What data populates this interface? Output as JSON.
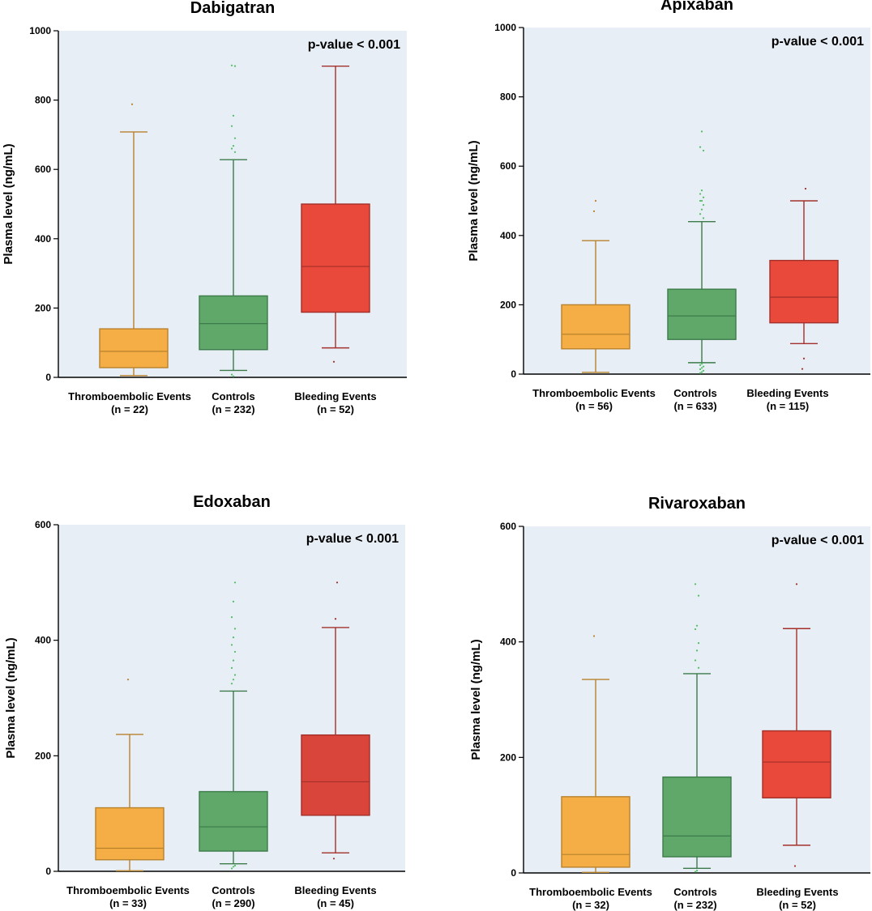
{
  "chart_data": [
    {
      "type": "box",
      "title": "Dabigatran",
      "annotation": "p-value < 0.001",
      "ylabel": "Plasma level (ng/mL)",
      "ylim": [
        0,
        1000
      ],
      "yticks": [
        0,
        200,
        400,
        600,
        800,
        1000
      ],
      "series": [
        {
          "category": "Thromboembolic Events",
          "n_label": "(n = 22)",
          "color": "#f5ae45",
          "line": "#b8822c",
          "whisker_low": 5,
          "q1": 28,
          "median": 75,
          "q3": 140,
          "whisker_high": 708,
          "outliers": [
            788
          ]
        },
        {
          "category": "Controls",
          "n_label": "(n = 232)",
          "color": "#5fa86a",
          "line": "#3d7b4a",
          "whisker_low": 20,
          "q1": 80,
          "median": 155,
          "q3": 235,
          "whisker_high": 628,
          "outliers": [
            8,
            3,
            650,
            660,
            668,
            690,
            725,
            755,
            898,
            900
          ]
        },
        {
          "category": "Bleeding Events",
          "n_label": "(n = 52)",
          "color": "#e8493a",
          "line": "#a3302a",
          "whisker_low": 85,
          "q1": 188,
          "median": 320,
          "q3": 500,
          "whisker_high": 898,
          "outliers": [
            45
          ]
        }
      ]
    },
    {
      "type": "box",
      "title": "Apixaban",
      "annotation": "p-value < 0.001",
      "ylabel": "Plasma level (ng/mL)",
      "ylim": [
        0,
        1000
      ],
      "yticks": [
        0,
        200,
        400,
        600,
        800,
        1000
      ],
      "series": [
        {
          "category": "Thromboembolic Events",
          "n_label": "(n = 56)",
          "color": "#f5ae45",
          "line": "#b8822c",
          "whisker_low": 5,
          "q1": 73,
          "median": 115,
          "q3": 200,
          "whisker_high": 385,
          "outliers": [
            470,
            500
          ]
        },
        {
          "category": "Controls",
          "n_label": "(n = 633)",
          "color": "#5fa86a",
          "line": "#3d7b4a",
          "whisker_low": 33,
          "q1": 100,
          "median": 168,
          "q3": 245,
          "whisker_high": 440,
          "outliers": [
            3,
            6,
            10,
            14,
            18,
            22,
            26,
            30,
            450,
            462,
            475,
            488,
            500,
            500,
            510,
            520,
            530,
            645,
            655,
            700
          ]
        },
        {
          "category": "Bleeding Events",
          "n_label": "(n = 115)",
          "color": "#e8493a",
          "line": "#a3302a",
          "whisker_low": 88,
          "q1": 148,
          "median": 222,
          "q3": 328,
          "whisker_high": 500,
          "outliers": [
            15,
            45,
            535
          ]
        }
      ]
    },
    {
      "type": "box",
      "title": "Edoxaban",
      "annotation": "p-value < 0.001",
      "ylabel": "Plasma level (ng/mL)",
      "ylim": [
        0,
        600
      ],
      "yticks": [
        0,
        200,
        400,
        600
      ],
      "series": [
        {
          "category": "Thromboembolic Events",
          "n_label": "(n = 33)",
          "color": "#f5ae45",
          "line": "#b8822c",
          "whisker_low": 1,
          "q1": 20,
          "median": 40,
          "q3": 110,
          "whisker_high": 237,
          "outliers": [
            332
          ]
        },
        {
          "category": "Controls",
          "n_label": "(n = 290)",
          "color": "#5fa86a",
          "line": "#3d7b4a",
          "whisker_low": 13,
          "q1": 35,
          "median": 77,
          "q3": 138,
          "whisker_high": 312,
          "outliers": [
            5,
            8,
            10,
            325,
            332,
            340,
            352,
            365,
            380,
            392,
            405,
            420,
            440,
            467,
            500
          ]
        },
        {
          "category": "Bleeding Events",
          "n_label": "(n = 45)",
          "color": "#d9453a",
          "line": "#a3302a",
          "whisker_low": 32,
          "q1": 97,
          "median": 155,
          "q3": 236,
          "whisker_high": 422,
          "outliers": [
            22,
            437,
            500
          ]
        }
      ]
    },
    {
      "type": "box",
      "title": "Rivaroxaban",
      "annotation": "p-value < 0.001",
      "ylabel": "Plasma level (ng/mL)",
      "ylim": [
        0,
        600
      ],
      "yticks": [
        0,
        200,
        400,
        600
      ],
      "series": [
        {
          "category": "Thromboembolic Events",
          "n_label": "(n = 32)",
          "color": "#f5ae45",
          "line": "#b8822c",
          "whisker_low": 1,
          "q1": 10,
          "median": 32,
          "q3": 132,
          "whisker_high": 335,
          "outliers": [
            410
          ]
        },
        {
          "category": "Controls",
          "n_label": "(n = 232)",
          "color": "#5fa86a",
          "line": "#3d7b4a",
          "whisker_low": 8,
          "q1": 28,
          "median": 64,
          "q3": 166,
          "whisker_high": 345,
          "outliers": [
            2,
            4,
            355,
            368,
            385,
            398,
            422,
            428,
            480,
            500
          ]
        },
        {
          "category": "Bleeding Events",
          "n_label": "(n = 52)",
          "color": "#e8493a",
          "line": "#a3302a",
          "whisker_low": 48,
          "q1": 130,
          "median": 192,
          "q3": 246,
          "whisker_high": 423,
          "outliers": [
            12,
            500
          ]
        }
      ]
    }
  ],
  "plot_background": "#e7eef6"
}
